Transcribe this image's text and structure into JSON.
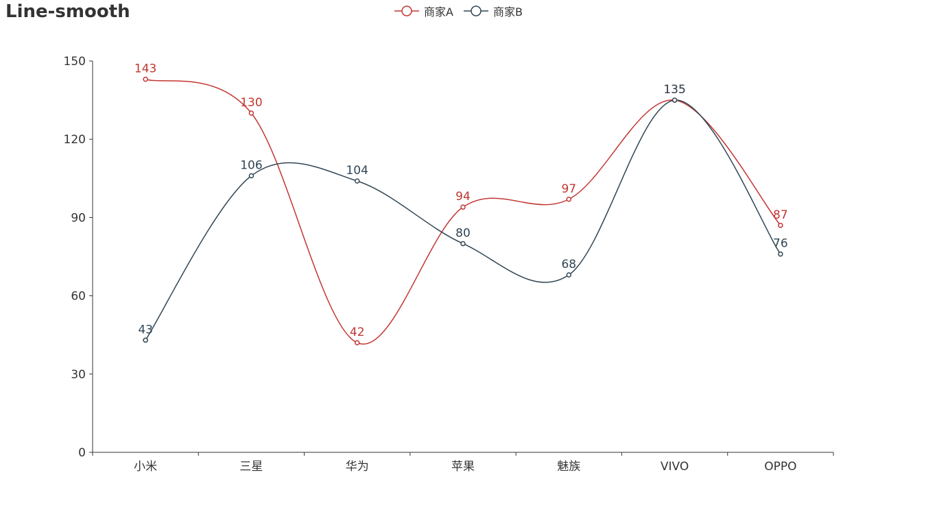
{
  "chart_data": {
    "type": "line",
    "title": "Line-smooth",
    "smooth": true,
    "categories": [
      "小米",
      "三星",
      "华为",
      "苹果",
      "魅族",
      "VIVO",
      "OPPO"
    ],
    "series": [
      {
        "name": "商家A",
        "color": "#c23531",
        "values": [
          143,
          130,
          42,
          94,
          97,
          135,
          87
        ]
      },
      {
        "name": "商家B",
        "color": "#2f4554",
        "values": [
          43,
          106,
          104,
          80,
          68,
          135,
          76
        ]
      }
    ],
    "yticks": [
      "0",
      "30",
      "60",
      "90",
      "120",
      "150"
    ],
    "ylim": [
      0,
      150
    ],
    "grid": false,
    "legend_position": "top-center",
    "data_labels": true
  }
}
